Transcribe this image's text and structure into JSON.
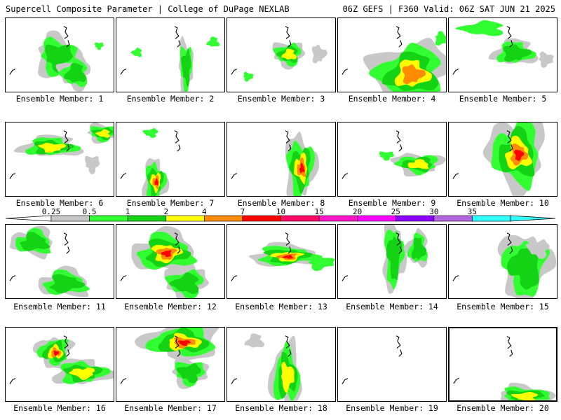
{
  "header": {
    "left": "Supercell Composite Parameter | College of DuPage NEXLAB",
    "right": "06Z GEFS | F360 Valid: 06Z SAT JUN 21 2025"
  },
  "label_prefix": "Ensemble Member:",
  "members": [
    {
      "number": "1",
      "label": "Ensemble Member: 1",
      "selected": false,
      "max_level": "2-4"
    },
    {
      "number": "2",
      "label": "Ensemble Member: 2",
      "selected": false,
      "max_level": "1-2"
    },
    {
      "number": "3",
      "label": "Ensemble Member: 3",
      "selected": false,
      "max_level": "2-4"
    },
    {
      "number": "4",
      "label": "Ensemble Member: 4",
      "selected": false,
      "max_level": "4-7"
    },
    {
      "number": "5",
      "label": "Ensemble Member: 5",
      "selected": false,
      "max_level": "2-4"
    },
    {
      "number": "6",
      "label": "Ensemble Member: 6",
      "selected": false,
      "max_level": "2-4"
    },
    {
      "number": "7",
      "label": "Ensemble Member: 7",
      "selected": false,
      "max_level": "7-10"
    },
    {
      "number": "8",
      "label": "Ensemble Member: 8",
      "selected": false,
      "max_level": "7-10"
    },
    {
      "number": "9",
      "label": "Ensemble Member: 9",
      "selected": false,
      "max_level": "2-4"
    },
    {
      "number": "10",
      "label": "Ensemble Member: 10",
      "selected": false,
      "max_level": "7-10"
    },
    {
      "number": "11",
      "label": "Ensemble Member: 11",
      "selected": false,
      "max_level": "2-4"
    },
    {
      "number": "12",
      "label": "Ensemble Member: 12",
      "selected": false,
      "max_level": "7-10"
    },
    {
      "number": "13",
      "label": "Ensemble Member: 13",
      "selected": false,
      "max_level": "7-10"
    },
    {
      "number": "14",
      "label": "Ensemble Member: 14",
      "selected": false,
      "max_level": "1-2"
    },
    {
      "number": "15",
      "label": "Ensemble Member: 15",
      "selected": false,
      "max_level": "1-2"
    },
    {
      "number": "16",
      "label": "Ensemble Member: 16",
      "selected": false,
      "max_level": "7-10"
    },
    {
      "number": "17",
      "label": "Ensemble Member: 17",
      "selected": false,
      "max_level": "7-10"
    },
    {
      "number": "18",
      "label": "Ensemble Member: 18",
      "selected": false,
      "max_level": "2-4"
    },
    {
      "number": "19",
      "label": "Ensemble Member: 19",
      "selected": false,
      "max_level": "none"
    },
    {
      "number": "20",
      "label": "Ensemble Member: 20",
      "selected": true,
      "max_level": "2-4"
    }
  ],
  "colorbar": {
    "labels": [
      "0.25",
      "0.5",
      "1",
      "2",
      "4",
      "7",
      "10",
      "15",
      "20",
      "25",
      "30",
      "35"
    ],
    "colors": [
      "#c8c8c8",
      "#32ff32",
      "#14d214",
      "#ffff00",
      "#ff8c00",
      "#ff0000",
      "#ff0a64",
      "#ff14c8",
      "#ff00ff",
      "#8c00ff",
      "#b464dc",
      "#32ffff"
    ]
  },
  "colors": {
    "gray": "#c8c8c8",
    "lightgreen": "#32ff32",
    "green": "#14d214",
    "yellow": "#ffff00",
    "orange": "#ff8c00",
    "red": "#ff0000",
    "outline": "#000000"
  }
}
